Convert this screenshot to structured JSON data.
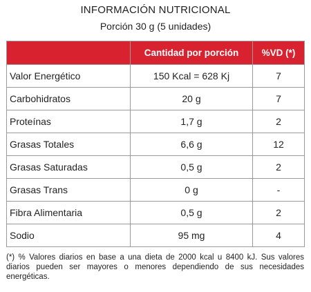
{
  "header": {
    "title": "INFORMACIÓN NUTRICIONAL",
    "portion": "Porción 30 g (5 unidades)"
  },
  "table": {
    "columns": [
      "",
      "Cantidad por porción",
      "%VD (*)"
    ],
    "rows": [
      {
        "name": "Valor Energético",
        "amount": "150 Kcal = 628 Kj",
        "vd": "7"
      },
      {
        "name": "Carbohidratos",
        "amount": "20 g",
        "vd": "7"
      },
      {
        "name": "Proteínas",
        "amount": "1,7 g",
        "vd": "2"
      },
      {
        "name": "Grasas Totales",
        "amount": "6,6 g",
        "vd": "12"
      },
      {
        "name": "Grasas Saturadas",
        "amount": "0,5 g",
        "vd": "2"
      },
      {
        "name": "Grasas Trans",
        "amount": "0 g",
        "vd": "-"
      },
      {
        "name": "Fibra Alimentaria",
        "amount": "0,5 g",
        "vd": "2"
      },
      {
        "name": "Sodio",
        "amount": "95 mg",
        "vd": "4"
      }
    ]
  },
  "footnote": "(*) % Valores diarios en base a una dieta de 2000 kcal u 8400 kJ. Sus valores diarios pueden ser mayores o menores dependiendo de sus necesidades energéticas.",
  "colors": {
    "header_bg": "#d9222f",
    "header_text": "#ffffff",
    "border": "#9a9a9a"
  }
}
